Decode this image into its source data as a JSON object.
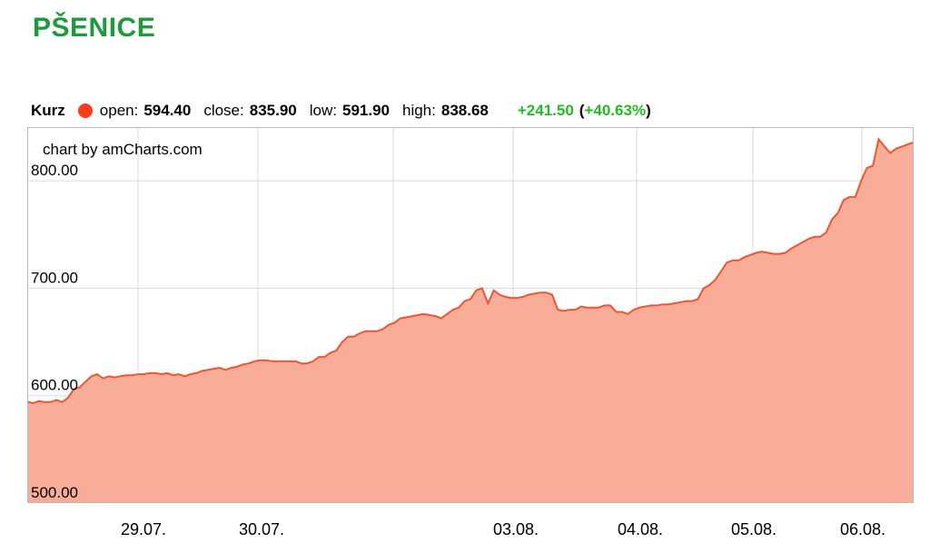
{
  "page_title": "PŠENICE",
  "legend": {
    "series": "Kurz",
    "open_label": "open:",
    "open": "594.40",
    "close_label": "close:",
    "close": "835.90",
    "low_label": "low:",
    "low": "591.90",
    "high_label": "high:",
    "high": "838.68",
    "change": "+241.50",
    "change_pct": "+40.63%",
    "marker_color": "#ff3b1a",
    "change_color": "#22bb22"
  },
  "chart_data": {
    "type": "area",
    "credit": "chart by amCharts.com",
    "series_color": "#ee5533",
    "fill_color": "#f9ac98",
    "ylim": [
      500,
      850
    ],
    "y_ticks": [
      500,
      600,
      700,
      800
    ],
    "y_tick_labels": [
      "500.00",
      "600.00",
      "700.00",
      "800.00"
    ],
    "x_tick_labels": [
      "29.07.",
      "30.07.",
      "03.08.",
      "04.08.",
      "05.08.",
      "06.08."
    ],
    "grid": true,
    "values": [
      594.4,
      593,
      595,
      594,
      594,
      596,
      594,
      598,
      606,
      608,
      613,
      618,
      620,
      616,
      618,
      617,
      618,
      619,
      619,
      620,
      620,
      621,
      621,
      620,
      621,
      619,
      620,
      618,
      620,
      621,
      623,
      624,
      625,
      626,
      624,
      626,
      627,
      629,
      630,
      632,
      633,
      633,
      632,
      632,
      632,
      632,
      632,
      630,
      630,
      632,
      636,
      636,
      640,
      642,
      650,
      655,
      655,
      658,
      660,
      660,
      660,
      662,
      666,
      668,
      672,
      673,
      674,
      675,
      676,
      675,
      674,
      672,
      676,
      680,
      682,
      688,
      690,
      698,
      700,
      686,
      698,
      694,
      692,
      691,
      691,
      692,
      694,
      695,
      696,
      696,
      694,
      680,
      679,
      680,
      680,
      683,
      682,
      682,
      682,
      684,
      684,
      678,
      678,
      676,
      680,
      682,
      683,
      684,
      684,
      685,
      685,
      686,
      687,
      688,
      688,
      690,
      700,
      703,
      708,
      716,
      724,
      726,
      726,
      729,
      731,
      733,
      734,
      733,
      732,
      732,
      733,
      737,
      740,
      743,
      746,
      748,
      748,
      752,
      764,
      770,
      782,
      785,
      785,
      800,
      812,
      814,
      838.68,
      832,
      826,
      830,
      832,
      834,
      835.9
    ]
  }
}
